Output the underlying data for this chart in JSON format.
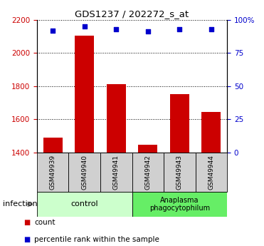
{
  "title": "GDS1237 / 202272_s_at",
  "samples": [
    "GSM49939",
    "GSM49940",
    "GSM49941",
    "GSM49942",
    "GSM49943",
    "GSM49944"
  ],
  "counts": [
    1490,
    2105,
    1810,
    1445,
    1750,
    1645
  ],
  "percentiles": [
    92,
    95,
    93,
    91,
    93,
    93
  ],
  "ylim_left": [
    1400,
    2200
  ],
  "ylim_right": [
    0,
    100
  ],
  "yticks_left": [
    1400,
    1600,
    1800,
    2000,
    2200
  ],
  "yticks_right": [
    0,
    25,
    50,
    75,
    100
  ],
  "yticklabels_right": [
    "0",
    "25",
    "50",
    "75",
    "100%"
  ],
  "bar_color": "#cc0000",
  "scatter_color": "#0000cc",
  "control_color": "#ccffcc",
  "anaplasma_color": "#66ee66",
  "control_label": "control",
  "anaplasma_label": "Anaplasma\nphagocytophilum",
  "infection_label": "infection",
  "legend_count": "count",
  "legend_percentile": "percentile rank within the sample",
  "bar_width": 0.6,
  "tick_label_color_left": "#cc0000",
  "tick_label_color_right": "#0000cc",
  "sample_box_color": "#d0d0d0",
  "arrow_color": "#888888"
}
